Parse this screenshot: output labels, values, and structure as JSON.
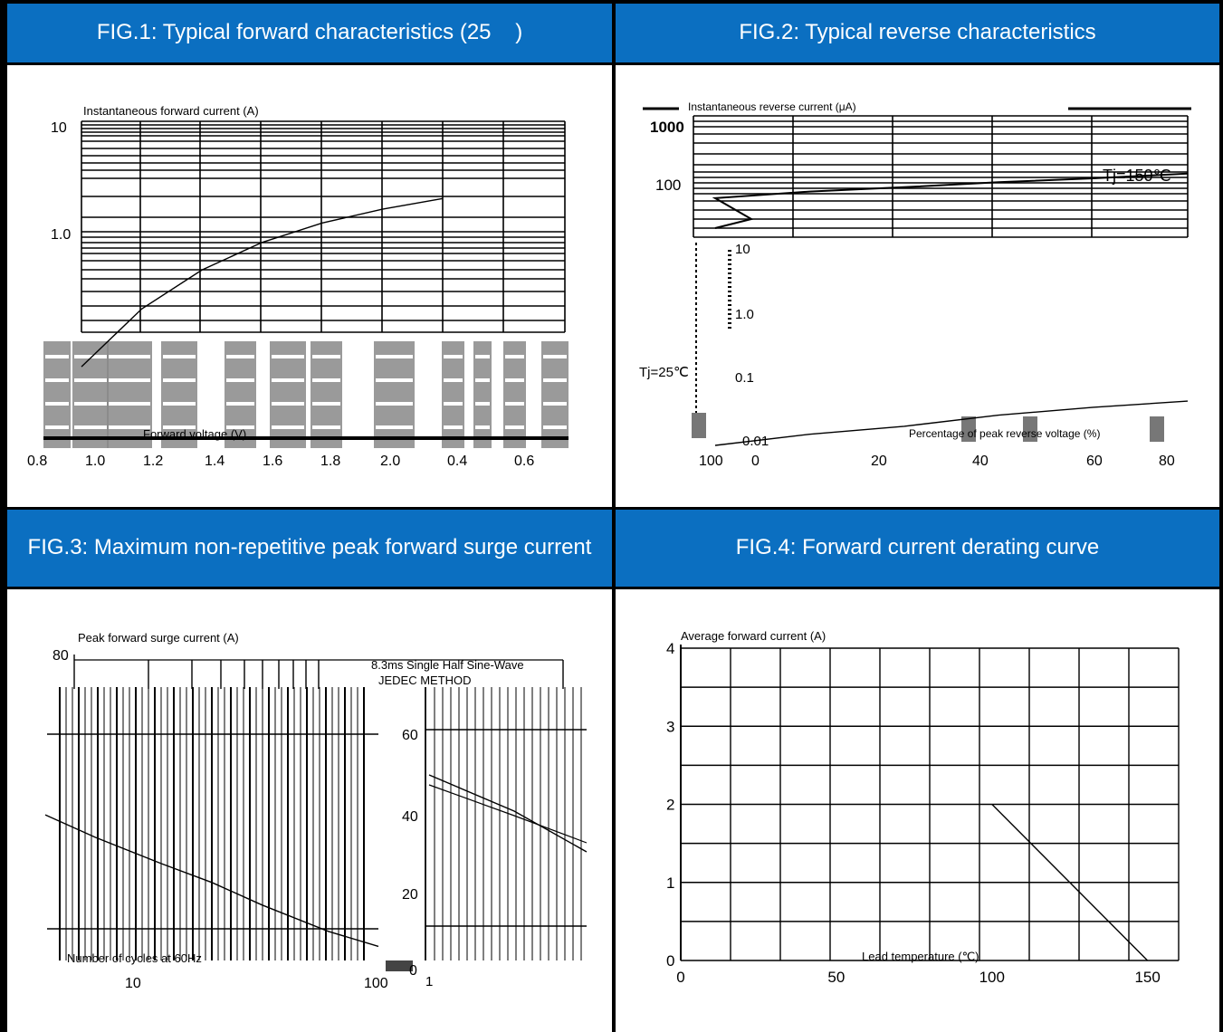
{
  "headers": [
    "FIG.1: Typical forward characteristics (25    )",
    "FIG.2: Typical reverse characteristics",
    "FIG.3: Maximum non-repetitive peak forward surge current",
    "FIG.4: Forward current derating curve"
  ],
  "chart_data": [
    {
      "type": "line",
      "ylabel": "Instantaneous forward current (A)",
      "xlabel": "Forward voltage (V)",
      "y_ticks": [
        "10",
        "1.0"
      ],
      "x_ticks": [
        "0.8",
        "1.0",
        "1.2",
        "1.4",
        "1.6",
        "1.8",
        "2.0",
        "0.4",
        "0.6"
      ],
      "yscale": "log",
      "series": [
        {
          "x": [
            0.8,
            1.0,
            1.2,
            1.4,
            1.6,
            1.8,
            2.0
          ],
          "y": [
            0.06,
            0.2,
            0.45,
            0.8,
            1.2,
            1.6,
            2.0
          ]
        }
      ]
    },
    {
      "type": "line",
      "ylabel": "Instantaneous reverse current (μA)",
      "xlabel": "Percentage of peak reverse voltage (%)",
      "y_ticks": [
        "1000",
        "100",
        "10",
        "1.0",
        "0.1",
        "0.01"
      ],
      "x_ticks": [
        "100",
        "0",
        "20",
        "40",
        "60",
        "80"
      ],
      "annotations": [
        "Tj=150℃",
        "Tj=25℃"
      ],
      "yscale": "log",
      "series": [
        {
          "name": "Tj=150℃",
          "x": [
            0,
            20,
            40,
            60,
            80,
            100
          ],
          "y": [
            20,
            28,
            35,
            45,
            55,
            70
          ]
        },
        {
          "name": "Tj=25℃",
          "x": [
            0,
            20,
            40,
            60,
            80,
            100
          ],
          "y": [
            0.01,
            0.015,
            0.02,
            0.03,
            0.04,
            0.05
          ]
        }
      ]
    },
    {
      "type": "line",
      "ylabel": "Peak forward surge current (A)",
      "xlabel": "Number of cycles at 60Hz",
      "y_ticks": [
        "80",
        "60",
        "40",
        "20",
        "0"
      ],
      "x_ticks": [
        "1",
        "10",
        "100"
      ],
      "annotations": [
        "8.3ms Single Half Sine-Wave",
        "JEDEC METHOD"
      ],
      "xscale": "log",
      "ylim": [
        0,
        80
      ],
      "series": [
        {
          "x": [
            1,
            2,
            5,
            10,
            20,
            50,
            100
          ],
          "y": [
            46,
            40,
            33,
            28,
            22,
            15,
            11
          ]
        }
      ]
    },
    {
      "type": "line",
      "ylabel": "Average forward current (A)",
      "xlabel": "Lead temperature (℃)",
      "y_ticks": [
        "4",
        "3",
        "2",
        "1",
        "0"
      ],
      "x_ticks": [
        "0",
        "50",
        "100",
        "150"
      ],
      "xlim": [
        0,
        160
      ],
      "ylim": [
        0,
        4
      ],
      "series": [
        {
          "x": [
            0,
            100,
            150
          ],
          "y": [
            2,
            2,
            0
          ]
        }
      ]
    }
  ]
}
